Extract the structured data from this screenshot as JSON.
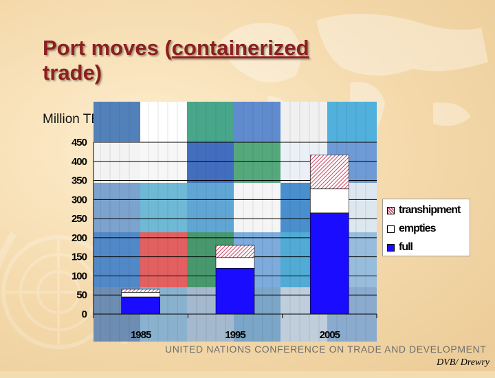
{
  "slide": {
    "title_line1_plain": "Port moves (",
    "title_line1_underlined": "containerized",
    "title_line2": "trade)",
    "units": "Million TEUs",
    "footer": "UNITED NATIONS CONFERENCE ON TRADE AND DEVELOPMENT",
    "credit": "DVB/ Drewry"
  },
  "colors": {
    "full": "#1a0dff",
    "empties": "#ffffff",
    "transhipment": "#e0607a",
    "title": "#8c1f1f"
  },
  "chart_data": {
    "type": "bar",
    "stacked": true,
    "categories": [
      "1985",
      "1995",
      "2005"
    ],
    "series": [
      {
        "name": "full",
        "values": [
          45,
          120,
          265
        ]
      },
      {
        "name": "empties",
        "values": [
          12,
          28,
          63
        ]
      },
      {
        "name": "transhipment",
        "values": [
          8,
          32,
          89
        ]
      }
    ],
    "ylim": [
      0,
      450
    ],
    "yticks": [
      0,
      50,
      100,
      150,
      200,
      250,
      300,
      350,
      400,
      450
    ],
    "grid": true,
    "legend": "right",
    "legend_order": [
      "transhipment",
      "empties",
      "full"
    ]
  }
}
